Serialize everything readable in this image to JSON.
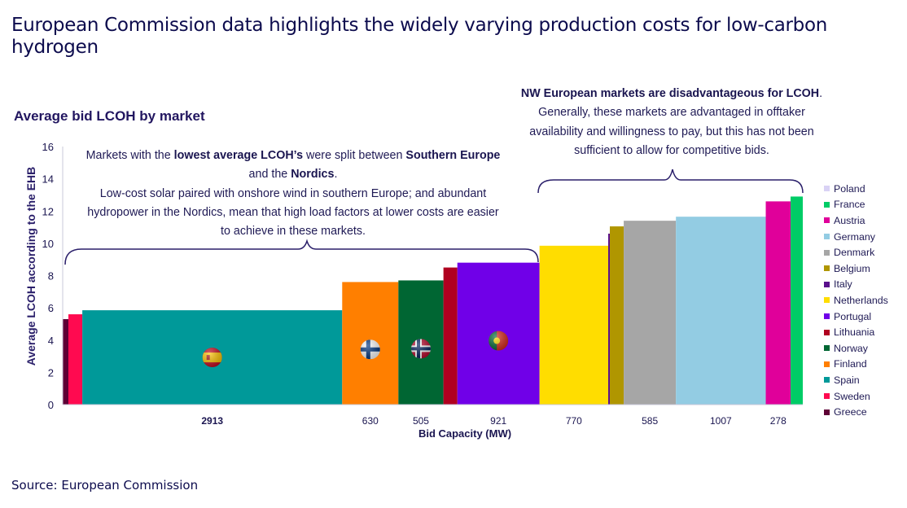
{
  "header": {
    "title": "European Commission data highlights the widely varying production costs for low-carbon hydrogen",
    "source": "Source: European Commission"
  },
  "chart_data": {
    "type": "bar",
    "variant": "variable-width bar (bar width = bid capacity)",
    "title": "Average bid LCOH by market",
    "xlabel": "Bid Capacity (MW)",
    "ylabel": "Average LCOH according to the EHB",
    "ylim": [
      0,
      16
    ],
    "yticks": [
      "0",
      "2",
      "4",
      "6",
      "8",
      "10",
      "12",
      "14",
      "16"
    ],
    "grid": false,
    "legend_position": "right",
    "bars": [
      {
        "name": "Greece",
        "lcoh": 5.3,
        "capacity_mw": 64,
        "label": "",
        "color": "#5e0035"
      },
      {
        "name": "Sweden",
        "lcoh": 5.6,
        "capacity_mw": 156,
        "label": "",
        "color": "#ff0a50"
      },
      {
        "name": "Spain",
        "lcoh": 5.85,
        "capacity_mw": 2913,
        "label": "2913",
        "color": "#009999",
        "flag": "spain-flag"
      },
      {
        "name": "Finland",
        "lcoh": 7.6,
        "capacity_mw": 630,
        "label": "630",
        "color": "#ff7f00",
        "flag": "finland-flag"
      },
      {
        "name": "Norway",
        "lcoh": 7.7,
        "capacity_mw": 505,
        "label": "505",
        "color": "#006633",
        "flag": "norway-flag"
      },
      {
        "name": "Lithuania",
        "lcoh": 8.5,
        "capacity_mw": 156,
        "label": "",
        "color": "#b00020"
      },
      {
        "name": "Portugal",
        "lcoh": 8.8,
        "capacity_mw": 921,
        "label": "921",
        "color": "#7000e8",
        "flag": "portugal-flag"
      },
      {
        "name": "Netherlands",
        "lcoh": 9.85,
        "capacity_mw": 770,
        "label": "770",
        "color": "#ffdd00"
      },
      {
        "name": "Italy",
        "lcoh": 10.6,
        "capacity_mw": 18,
        "label": "",
        "color": "#5a0f8c"
      },
      {
        "name": "Belgium",
        "lcoh": 11.05,
        "capacity_mw": 156,
        "label": "",
        "color": "#b09600"
      },
      {
        "name": "Denmark",
        "lcoh": 11.4,
        "capacity_mw": 585,
        "label": "585",
        "color": "#a6a6a6"
      },
      {
        "name": "Germany",
        "lcoh": 11.65,
        "capacity_mw": 1007,
        "label": "1007",
        "color": "#93cce3"
      },
      {
        "name": "Austria",
        "lcoh": 12.6,
        "capacity_mw": 278,
        "label": "278",
        "color": "#e0009a"
      },
      {
        "name": "France",
        "lcoh": 12.9,
        "capacity_mw": 137,
        "label": "",
        "color": "#00cc66"
      }
    ],
    "legend": [
      {
        "name": "Poland",
        "color": "#d9d2f5"
      },
      {
        "name": "France",
        "color": "#00cc66"
      },
      {
        "name": "Austria",
        "color": "#e0009a"
      },
      {
        "name": "Germany",
        "color": "#93cce3"
      },
      {
        "name": "Denmark",
        "color": "#a6a6a6"
      },
      {
        "name": "Belgium",
        "color": "#b09600"
      },
      {
        "name": "Italy",
        "color": "#5a0f8c"
      },
      {
        "name": "Netherlands",
        "color": "#ffdd00"
      },
      {
        "name": "Portugal",
        "color": "#7000e8"
      },
      {
        "name": "Lithuania",
        "color": "#b00020"
      },
      {
        "name": "Norway",
        "color": "#006633"
      },
      {
        "name": "Finland",
        "color": "#ff7f00"
      },
      {
        "name": "Spain",
        "color": "#009999"
      },
      {
        "name": "Sweden",
        "color": "#ff0a50"
      },
      {
        "name": "Greece",
        "color": "#5e0035"
      }
    ],
    "annotations": {
      "left": {
        "l1a": "Markets with the ",
        "l1b": "lowest average LCOH’s",
        "l1c": " were split between ",
        "l1d": "Southern Europe",
        "l2a": "and the ",
        "l2b": "Nordics",
        "l2c": ".",
        "l3": "Low-cost solar paired with onshore wind in southern Europe; and abundant",
        "l4": "hydropower in the Nordics, mean that high load factors at lower costs are easier",
        "l5": "to achieve in these markets."
      },
      "right": {
        "l1a": "NW European markets are disadvantageous for LCOH",
        "l1b": ".",
        "l2": "Generally, these markets are advantaged in offtaker",
        "l3": "availability and willingness to pay, but this has not been",
        "l4": "sufficient to allow for competitive bids."
      }
    }
  }
}
